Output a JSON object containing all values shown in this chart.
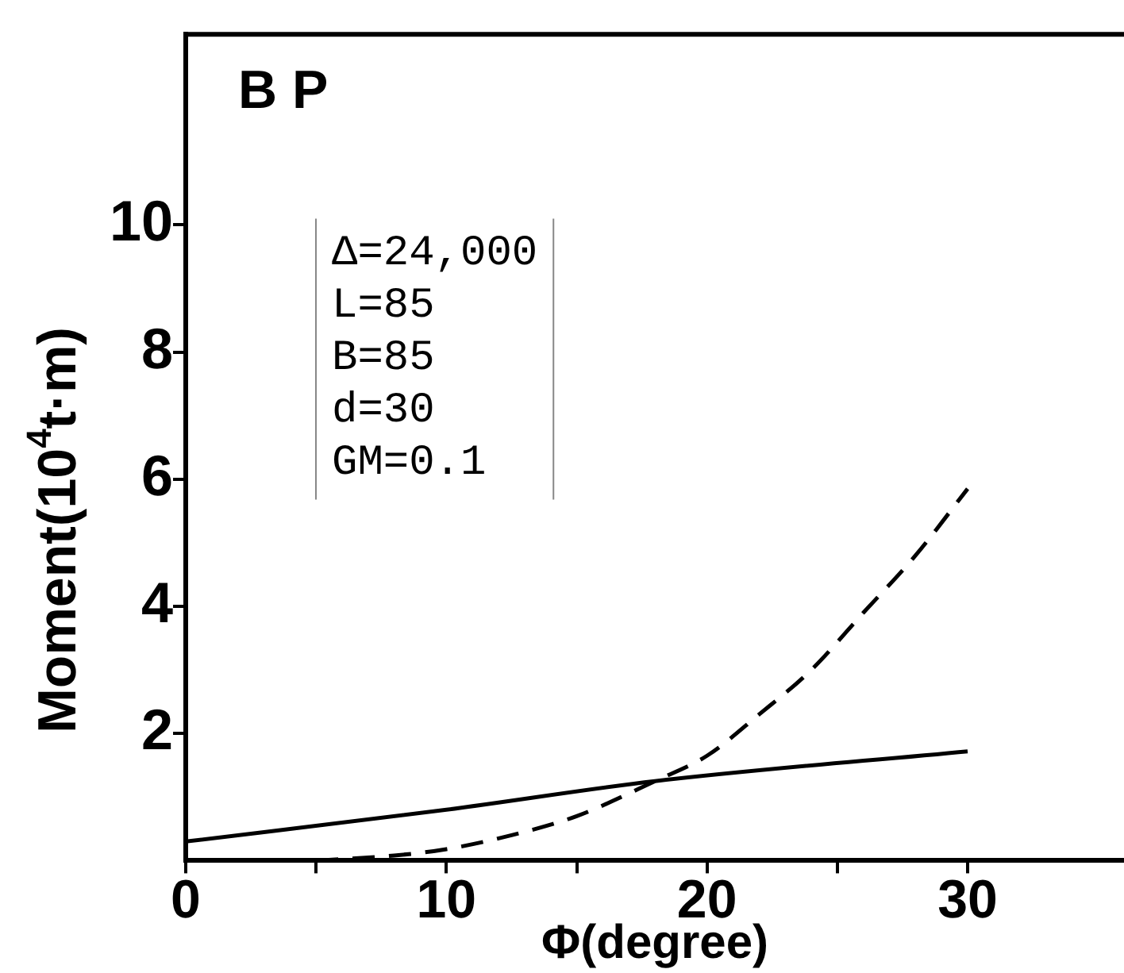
{
  "chart_data": {
    "type": "line",
    "title": "B P",
    "xlabel": "Φ(degree)",
    "ylabel": "Moment(10$^{4}$t·m)",
    "annotations": [
      "Δ=24,000",
      "L=85",
      "B=85",
      "d=30",
      "GM=0.1"
    ],
    "xlim": [
      0,
      36
    ],
    "xticks": [
      0,
      {
        "value": 5,
        "label": null
      },
      10,
      {
        "value": 15,
        "label": null
      },
      20,
      {
        "value": 25,
        "label": null
      },
      30
    ],
    "ylim": [
      0,
      13
    ],
    "yticks": [
      2,
      4,
      6,
      8,
      10
    ],
    "grid": false,
    "legend": false,
    "marker": "none",
    "series": [
      {
        "color": "#000000",
        "line_style": "solid",
        "x": [
          0,
          10,
          18,
          30
        ],
        "values": [
          0.3,
          0.8,
          1.25,
          1.72
        ]
      },
      {
        "color": "#000000",
        "line_style": "dashed",
        "x": [
          5,
          8,
          10,
          12.5,
          15,
          18,
          20,
          22,
          24,
          26,
          28,
          30
        ],
        "values": [
          0,
          0.08,
          0.18,
          0.4,
          0.7,
          1.25,
          1.65,
          2.3,
          3.0,
          3.9,
          4.8,
          5.85
        ]
      }
    ]
  }
}
